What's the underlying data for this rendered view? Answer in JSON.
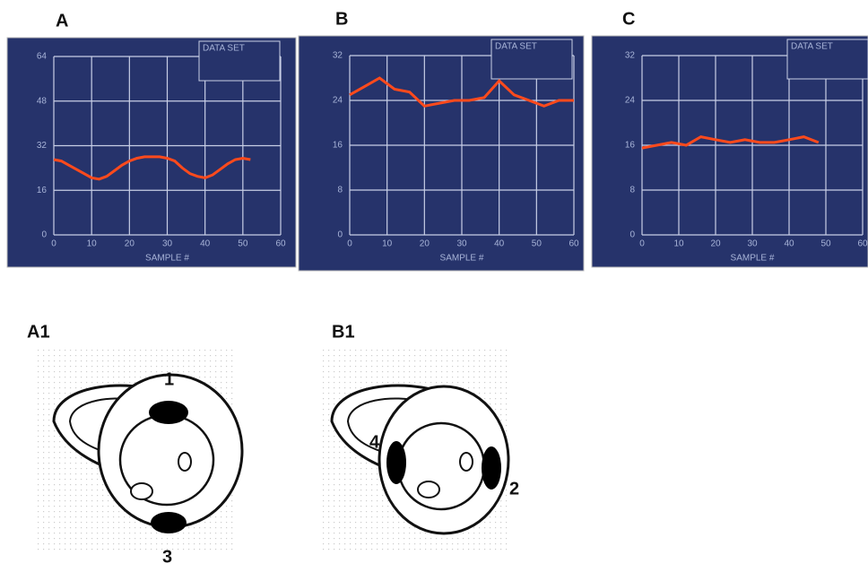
{
  "panels": [
    "A",
    "B",
    "C"
  ],
  "chart_data": [
    {
      "type": "line",
      "color": "#ff4a1c",
      "x_label": "SAMPLE #",
      "annotation": "DATA SET",
      "x": [
        0,
        2,
        4,
        6,
        8,
        10,
        12,
        14,
        16,
        18,
        20,
        22,
        24,
        26,
        28,
        30,
        32,
        34,
        36,
        38,
        40,
        42,
        44,
        46,
        48,
        50,
        52
      ],
      "values": [
        27,
        26.5,
        25,
        23.5,
        22,
        20.5,
        20,
        21,
        23,
        25,
        26.5,
        27.5,
        28,
        28,
        28,
        27.5,
        26.5,
        24,
        22,
        21,
        20.5,
        21.5,
        23.5,
        25.5,
        27,
        27.5,
        27
      ],
      "xlim": [
        0,
        60
      ],
      "xticks": [
        0,
        10,
        20,
        30,
        40,
        50,
        60
      ],
      "ylim": [
        0,
        64
      ],
      "yticks": [
        0,
        16,
        32,
        48,
        64
      ],
      "grid": true
    },
    {
      "type": "line",
      "color": "#ff4a1c",
      "x_label": "SAMPLE #",
      "annotation": "DATA SET",
      "x": [
        0,
        4,
        8,
        12,
        16,
        20,
        24,
        28,
        32,
        36,
        40,
        44,
        48,
        52,
        56,
        60
      ],
      "values": [
        25,
        26.5,
        28,
        26,
        25.5,
        23,
        23.5,
        24,
        24,
        24.5,
        27.5,
        25,
        24,
        23,
        24,
        24
      ],
      "xlim": [
        0,
        60
      ],
      "xticks": [
        0,
        10,
        20,
        30,
        40,
        50,
        60
      ],
      "ylim": [
        0,
        32
      ],
      "yticks": [
        0,
        8,
        16,
        24,
        32
      ],
      "grid": true
    },
    {
      "type": "line",
      "color": "#ff4a1c",
      "x_label": "SAMPLE #",
      "annotation": "DATA SET",
      "x": [
        0,
        4,
        8,
        12,
        16,
        20,
        24,
        28,
        32,
        36,
        40,
        44,
        48
      ],
      "values": [
        15.5,
        16,
        16.5,
        16,
        17.5,
        17,
        16.5,
        17,
        16.5,
        16.5,
        17,
        17.5,
        16.5
      ],
      "xlim": [
        0,
        60
      ],
      "xticks": [
        0,
        10,
        20,
        30,
        40,
        50,
        60
      ],
      "ylim": [
        0,
        32
      ],
      "yticks": [
        0,
        8,
        16,
        24,
        32
      ],
      "grid": true
    }
  ],
  "diagrams": [
    {
      "label": "A1",
      "markers": [
        "1",
        "3"
      ]
    },
    {
      "label": "B1",
      "markers": [
        "4",
        "2"
      ]
    }
  ]
}
